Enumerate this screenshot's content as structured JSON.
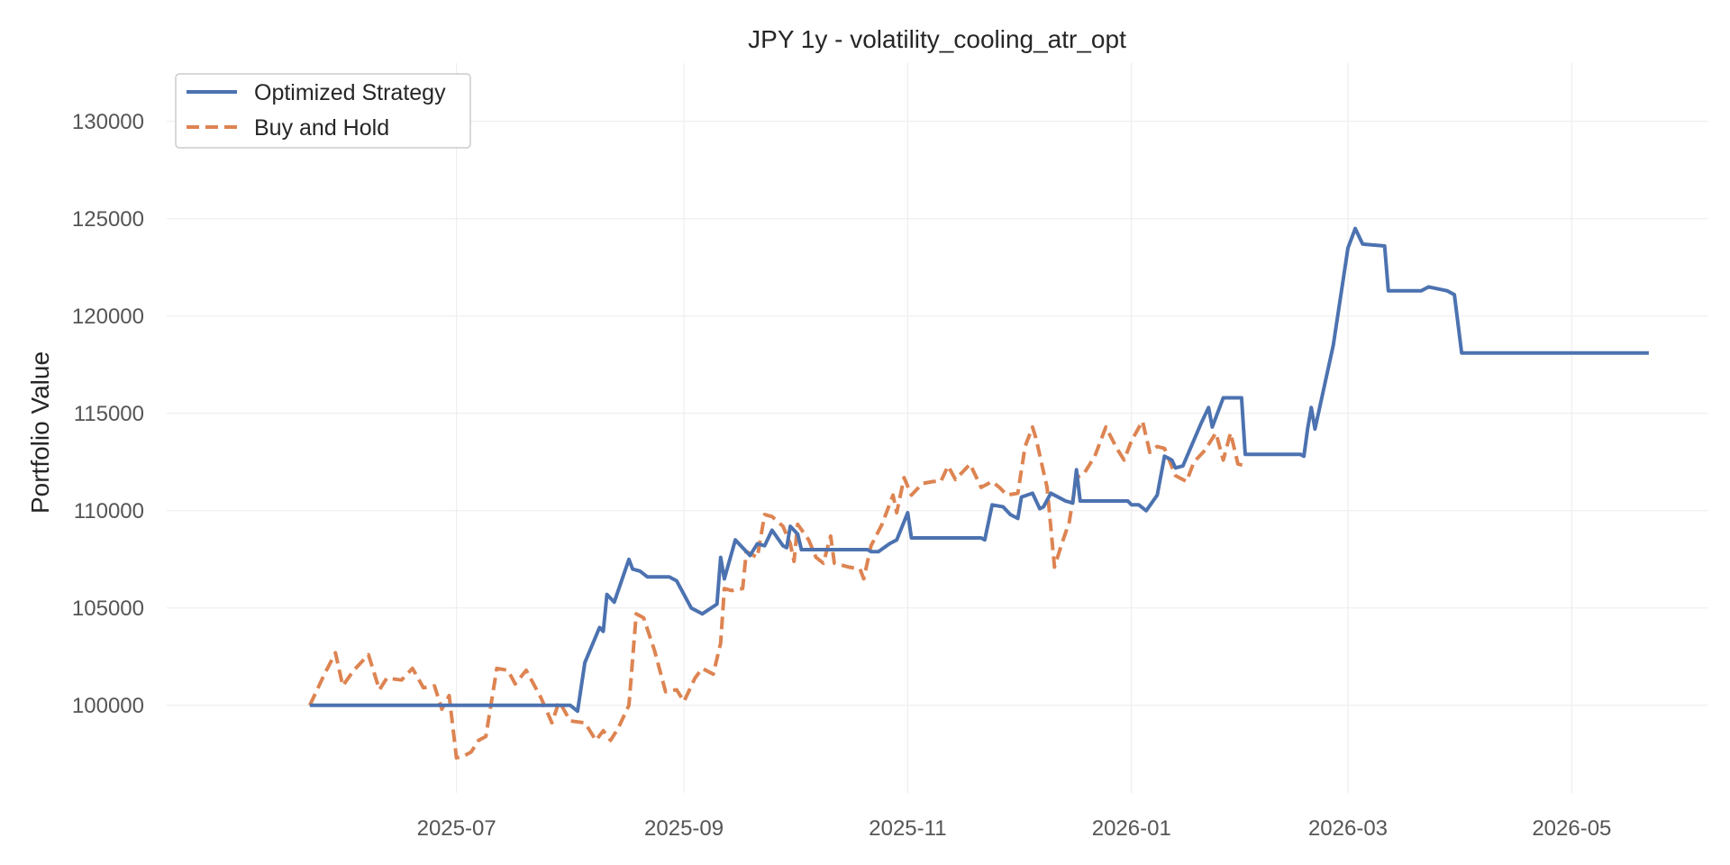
{
  "chart_data": {
    "type": "line",
    "title": "JPY 1y - volatility_cooling_atr_opt",
    "xlabel": "",
    "ylabel": "Portfolio Value",
    "grid": true,
    "legend_position": "top-left",
    "xlim": [
      "2025-04-13",
      "2026-06-07"
    ],
    "ylim": [
      95500,
      133000
    ],
    "x_ticks": [
      "2025-07-01",
      "2025-09-01",
      "2025-11-01",
      "2026-01-01",
      "2026-03-01",
      "2026-05-01"
    ],
    "x_tick_labels": [
      "2025-07",
      "2025-09",
      "2025-11",
      "2026-01",
      "2026-03",
      "2026-05"
    ],
    "y_ticks": [
      100000,
      105000,
      110000,
      115000,
      120000,
      125000,
      130000
    ],
    "y_tick_labels": [
      "100000",
      "105000",
      "110000",
      "115000",
      "120000",
      "125000",
      "130000"
    ],
    "series": [
      {
        "name": "Optimized Strategy",
        "color": "#4c72b0",
        "style": "solid",
        "points": [
          [
            "2025-05-22",
            100000
          ],
          [
            "2025-08-01",
            100000
          ],
          [
            "2025-08-03",
            99700
          ],
          [
            "2025-08-05",
            102200
          ],
          [
            "2025-08-09",
            104000
          ],
          [
            "2025-08-10",
            103800
          ],
          [
            "2025-08-11",
            105700
          ],
          [
            "2025-08-13",
            105300
          ],
          [
            "2025-08-17",
            107500
          ],
          [
            "2025-08-18",
            107000
          ],
          [
            "2025-08-20",
            106900
          ],
          [
            "2025-08-22",
            106600
          ],
          [
            "2025-08-28",
            106600
          ],
          [
            "2025-08-30",
            106400
          ],
          [
            "2025-09-03",
            105000
          ],
          [
            "2025-09-05",
            104800
          ],
          [
            "2025-09-06",
            104700
          ],
          [
            "2025-09-10",
            105200
          ],
          [
            "2025-09-11",
            107600
          ],
          [
            "2025-09-12",
            106500
          ],
          [
            "2025-09-15",
            108500
          ],
          [
            "2025-09-19",
            107700
          ],
          [
            "2025-09-21",
            108300
          ],
          [
            "2025-09-23",
            108200
          ],
          [
            "2025-09-25",
            109000
          ],
          [
            "2025-09-28",
            108200
          ],
          [
            "2025-09-29",
            108100
          ],
          [
            "2025-09-30",
            109200
          ],
          [
            "2025-10-02",
            108800
          ],
          [
            "2025-10-03",
            108000
          ],
          [
            "2025-10-21",
            108000
          ],
          [
            "2025-10-22",
            107900
          ],
          [
            "2025-10-24",
            107900
          ],
          [
            "2025-10-27",
            108300
          ],
          [
            "2025-10-29",
            108500
          ],
          [
            "2025-11-01",
            109900
          ],
          [
            "2025-11-02",
            108600
          ],
          [
            "2025-11-21",
            108600
          ],
          [
            "2025-11-22",
            108500
          ],
          [
            "2025-11-24",
            110300
          ],
          [
            "2025-11-27",
            110200
          ],
          [
            "2025-11-29",
            109800
          ],
          [
            "2025-12-01",
            109600
          ],
          [
            "2025-12-02",
            110700
          ],
          [
            "2025-12-05",
            110900
          ],
          [
            "2025-12-07",
            110100
          ],
          [
            "2025-12-08",
            110200
          ],
          [
            "2025-12-10",
            110900
          ],
          [
            "2025-12-12",
            110700
          ],
          [
            "2025-12-14",
            110500
          ],
          [
            "2025-12-16",
            110400
          ],
          [
            "2025-12-17",
            112100
          ],
          [
            "2025-12-18",
            110500
          ],
          [
            "2025-12-31",
            110500
          ],
          [
            "2026-01-01",
            110300
          ],
          [
            "2026-01-03",
            110300
          ],
          [
            "2026-01-05",
            110000
          ],
          [
            "2026-01-08",
            110800
          ],
          [
            "2026-01-10",
            112800
          ],
          [
            "2026-01-12",
            112600
          ],
          [
            "2026-01-13",
            112200
          ],
          [
            "2026-01-15",
            112300
          ],
          [
            "2026-01-20",
            114500
          ],
          [
            "2026-01-22",
            115300
          ],
          [
            "2026-01-23",
            114300
          ],
          [
            "2026-01-26",
            115800
          ],
          [
            "2026-01-31",
            115800
          ],
          [
            "2026-02-01",
            112900
          ],
          [
            "2026-02-16",
            112900
          ],
          [
            "2026-02-17",
            112800
          ],
          [
            "2026-02-18",
            114200
          ],
          [
            "2026-02-19",
            115300
          ],
          [
            "2026-02-20",
            114200
          ],
          [
            "2026-02-25",
            118500
          ],
          [
            "2026-03-01",
            123500
          ],
          [
            "2026-03-03",
            124500
          ],
          [
            "2026-03-05",
            123700
          ],
          [
            "2026-03-11",
            123600
          ],
          [
            "2026-03-12",
            121300
          ],
          [
            "2026-03-20",
            121300
          ],
          [
            "2026-03-21",
            121300
          ],
          [
            "2026-03-23",
            121500
          ],
          [
            "2026-03-28",
            121300
          ],
          [
            "2026-03-30",
            121100
          ],
          [
            "2026-04-01",
            118100
          ],
          [
            "2026-04-03",
            118100
          ],
          [
            "2026-04-07",
            118100
          ],
          [
            "2026-04-10",
            118100
          ],
          [
            "2026-04-14",
            118100
          ],
          [
            "2026-04-18",
            118100
          ],
          [
            "2026-04-20",
            118100
          ],
          [
            "2026-04-22",
            118100
          ],
          [
            "2026-04-24",
            118100
          ],
          [
            "2026-04-26",
            118100
          ],
          [
            "2026-04-28",
            118100
          ],
          [
            "2026-04-30",
            118100
          ],
          [
            "2026-05-02",
            118100
          ],
          [
            "2026-05-05",
            118100
          ],
          [
            "2026-05-07",
            118100
          ],
          [
            "2026-05-10",
            118100
          ],
          [
            "2026-05-13",
            118100
          ],
          [
            "2026-05-16",
            118100
          ],
          [
            "2026-05-19",
            118100
          ],
          [
            "2026-05-21",
            118100
          ],
          [
            "2026-05-22",
            118100
          ]
        ]
      },
      {
        "name": "Buy and Hold",
        "color": "#dd8452",
        "style": "dashed",
        "points": [
          [
            "2025-05-22",
            100000
          ],
          [
            "2025-05-26",
            101600
          ],
          [
            "2025-05-29",
            102700
          ],
          [
            "2025-05-31",
            101000
          ],
          [
            "2025-06-03",
            101800
          ],
          [
            "2025-06-07",
            102600
          ],
          [
            "2025-06-10",
            100800
          ],
          [
            "2025-06-12",
            101400
          ],
          [
            "2025-06-16",
            101300
          ],
          [
            "2025-06-19",
            101900
          ],
          [
            "2025-06-22",
            100900
          ],
          [
            "2025-06-25",
            101000
          ],
          [
            "2025-06-27",
            99800
          ],
          [
            "2025-06-29",
            100500
          ],
          [
            "2025-07-01",
            97300
          ],
          [
            "2025-07-03",
            97400
          ],
          [
            "2025-07-05",
            97600
          ],
          [
            "2025-07-07",
            98200
          ],
          [
            "2025-07-09",
            98400
          ],
          [
            "2025-07-12",
            101900
          ],
          [
            "2025-07-15",
            101800
          ],
          [
            "2025-07-17",
            101100
          ],
          [
            "2025-07-20",
            101800
          ],
          [
            "2025-07-24",
            100400
          ],
          [
            "2025-07-27",
            99100
          ],
          [
            "2025-07-29",
            100200
          ],
          [
            "2025-08-01",
            99200
          ],
          [
            "2025-08-05",
            99100
          ],
          [
            "2025-08-08",
            98200
          ],
          [
            "2025-08-10",
            98700
          ],
          [
            "2025-08-12",
            98200
          ],
          [
            "2025-08-14",
            98800
          ],
          [
            "2025-08-17",
            100000
          ],
          [
            "2025-08-19",
            104700
          ],
          [
            "2025-08-21",
            104500
          ],
          [
            "2025-08-24",
            102800
          ],
          [
            "2025-08-27",
            100700
          ],
          [
            "2025-08-30",
            100800
          ],
          [
            "2025-09-01",
            100200
          ],
          [
            "2025-09-04",
            101400
          ],
          [
            "2025-09-06",
            101900
          ],
          [
            "2025-09-09",
            101600
          ],
          [
            "2025-09-11",
            103200
          ],
          [
            "2025-09-12",
            106000
          ],
          [
            "2025-09-14",
            105900
          ],
          [
            "2025-09-17",
            106000
          ],
          [
            "2025-09-18",
            107900
          ],
          [
            "2025-09-21",
            107600
          ],
          [
            "2025-09-23",
            109800
          ],
          [
            "2025-09-25",
            109700
          ],
          [
            "2025-09-28",
            109200
          ],
          [
            "2025-09-30",
            108300
          ],
          [
            "2025-10-01",
            107400
          ],
          [
            "2025-10-02",
            109300
          ],
          [
            "2025-10-05",
            108500
          ],
          [
            "2025-10-07",
            107600
          ],
          [
            "2025-10-09",
            107300
          ],
          [
            "2025-10-11",
            108700
          ],
          [
            "2025-10-12",
            107300
          ],
          [
            "2025-10-16",
            107100
          ],
          [
            "2025-10-19",
            107000
          ],
          [
            "2025-10-20",
            106500
          ],
          [
            "2025-10-22",
            108200
          ],
          [
            "2025-10-25",
            109300
          ],
          [
            "2025-10-28",
            110800
          ],
          [
            "2025-10-29",
            109900
          ],
          [
            "2025-10-31",
            111700
          ],
          [
            "2025-11-02",
            110800
          ],
          [
            "2025-11-05",
            111400
          ],
          [
            "2025-11-08",
            111500
          ],
          [
            "2025-11-10",
            111500
          ],
          [
            "2025-11-12",
            112300
          ],
          [
            "2025-11-14",
            111600
          ],
          [
            "2025-11-16",
            112000
          ],
          [
            "2025-11-18",
            112400
          ],
          [
            "2025-11-21",
            111200
          ],
          [
            "2025-11-24",
            111500
          ],
          [
            "2025-11-26",
            111200
          ],
          [
            "2025-11-28",
            110800
          ],
          [
            "2025-12-01",
            110900
          ],
          [
            "2025-12-03",
            113300
          ],
          [
            "2025-12-05",
            114300
          ],
          [
            "2025-12-06",
            113700
          ],
          [
            "2025-12-08",
            112000
          ],
          [
            "2025-12-09",
            111200
          ],
          [
            "2025-12-11",
            107100
          ],
          [
            "2025-12-13",
            108300
          ],
          [
            "2025-12-15",
            109400
          ],
          [
            "2025-12-17",
            111700
          ],
          [
            "2025-12-19",
            111900
          ],
          [
            "2025-12-22",
            112800
          ],
          [
            "2025-12-25",
            114300
          ],
          [
            "2025-12-28",
            113200
          ],
          [
            "2025-12-30",
            112600
          ],
          [
            "2026-01-01",
            113600
          ],
          [
            "2026-01-04",
            114600
          ],
          [
            "2026-01-06",
            113000
          ],
          [
            "2026-01-08",
            113300
          ],
          [
            "2026-01-10",
            113200
          ],
          [
            "2026-01-13",
            111800
          ],
          [
            "2026-01-16",
            111500
          ],
          [
            "2026-01-18",
            112500
          ],
          [
            "2026-01-21",
            113100
          ],
          [
            "2026-01-24",
            114000
          ],
          [
            "2026-01-26",
            112600
          ],
          [
            "2026-01-28",
            114000
          ],
          [
            "2026-01-30",
            112400
          ],
          [
            "2026-02-01",
            112300
          ]
        ]
      }
    ]
  },
  "legend": {
    "items": [
      {
        "label": "Optimized Strategy",
        "color": "#4c72b0",
        "style": "solid"
      },
      {
        "label": "Buy and Hold",
        "color": "#dd8452",
        "style": "dashed"
      }
    ]
  }
}
